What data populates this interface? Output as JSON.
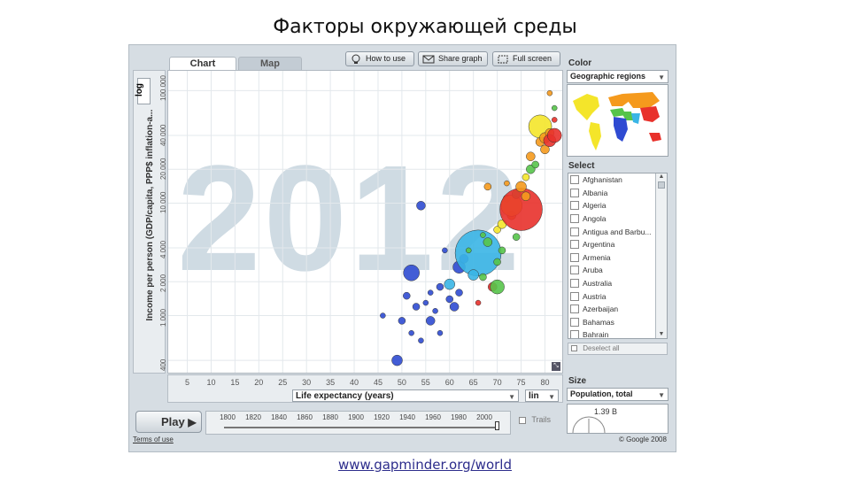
{
  "slide": {
    "title": "Факторы окружающей среды",
    "link": "www.gapminder.org/world"
  },
  "tabs": [
    {
      "label": "Chart"
    },
    {
      "label": "Map"
    }
  ],
  "toolbar": {
    "how_to_use": "How to use",
    "share_graph": "Share graph",
    "full_screen": "Full screen"
  },
  "y_axis": {
    "label": "Income per person (GDP/capita, PPP$ inflation-a...",
    "scale": "log",
    "ticks": [
      "400",
      "1 000",
      "2 000",
      "4 000",
      "10 000",
      "20 000",
      "40 000",
      "100 000"
    ]
  },
  "x_axis": {
    "label": "Life expectancy (years)",
    "scale": "lin",
    "ticks": [
      "5",
      "10",
      "15",
      "20",
      "25",
      "30",
      "35",
      "40",
      "45",
      "50",
      "55",
      "60",
      "65",
      "70",
      "75",
      "80"
    ]
  },
  "year": "2012",
  "color_panel": {
    "title": "Color",
    "value": "Geographic regions",
    "region_colors": {
      "sub_saharan_africa": "#2f4bd2",
      "south_asia": "#3ab5e6",
      "middle_east_north_africa": "#56c44a",
      "america": "#f4e52a",
      "europe_central_asia": "#f59a1d",
      "east_asia_pacific": "#e8312b"
    }
  },
  "select_panel": {
    "title": "Select",
    "items": [
      "Afghanistan",
      "Albania",
      "Algeria",
      "Angola",
      "Antigua and Barbu...",
      "Argentina",
      "Armenia",
      "Aruba",
      "Australia",
      "Austria",
      "Azerbaijan",
      "Bahamas",
      "Bahrain"
    ],
    "deselect_all": "Deselect all"
  },
  "size_panel": {
    "title": "Size",
    "value": "Population, total",
    "gauge_value": "1.39 B"
  },
  "player": {
    "play_label": "Play",
    "years": [
      "1800",
      "1820",
      "1840",
      "1860",
      "1880",
      "1900",
      "1920",
      "1940",
      "1960",
      "1980",
      "2000"
    ],
    "trails_label": "Trails"
  },
  "footer": {
    "terms": "Terms of use",
    "copyright": "© Google 2008"
  },
  "chart_data": {
    "type": "scatter",
    "x_label": "Life expectancy (years)",
    "y_label": "Income per person (GDP/capita, PPP$ inflation-a...",
    "y_scale": "log",
    "x_range": [
      1,
      84
    ],
    "y_range": [
      300,
      150000
    ],
    "points": [
      {
        "x": 46,
        "y": 1000,
        "s": 3,
        "c": "#2f4bd2"
      },
      {
        "x": 49,
        "y": 400,
        "s": 6,
        "c": "#2f4bd2"
      },
      {
        "x": 50,
        "y": 900,
        "s": 4,
        "c": "#2f4bd2"
      },
      {
        "x": 51,
        "y": 1500,
        "s": 4,
        "c": "#2f4bd2"
      },
      {
        "x": 52,
        "y": 2400,
        "s": 9,
        "c": "#2f4bd2"
      },
      {
        "x": 52,
        "y": 700,
        "s": 3,
        "c": "#2f4bd2"
      },
      {
        "x": 53,
        "y": 1200,
        "s": 4,
        "c": "#2f4bd2"
      },
      {
        "x": 54,
        "y": 600,
        "s": 3,
        "c": "#2f4bd2"
      },
      {
        "x": 54,
        "y": 9500,
        "s": 5,
        "c": "#2f4bd2"
      },
      {
        "x": 55,
        "y": 1300,
        "s": 3,
        "c": "#2f4bd2"
      },
      {
        "x": 56,
        "y": 900,
        "s": 5,
        "c": "#2f4bd2"
      },
      {
        "x": 56,
        "y": 1600,
        "s": 3,
        "c": "#2f4bd2"
      },
      {
        "x": 57,
        "y": 1100,
        "s": 3,
        "c": "#2f4bd2"
      },
      {
        "x": 58,
        "y": 1800,
        "s": 4,
        "c": "#2f4bd2"
      },
      {
        "x": 58,
        "y": 700,
        "s": 3,
        "c": "#2f4bd2"
      },
      {
        "x": 59,
        "y": 3800,
        "s": 3,
        "c": "#2f4bd2"
      },
      {
        "x": 60,
        "y": 1400,
        "s": 4,
        "c": "#2f4bd2"
      },
      {
        "x": 60,
        "y": 1900,
        "s": 6,
        "c": "#3ab5e6"
      },
      {
        "x": 61,
        "y": 1200,
        "s": 5,
        "c": "#2f4bd2"
      },
      {
        "x": 62,
        "y": 2700,
        "s": 7,
        "c": "#2f4bd2"
      },
      {
        "x": 62,
        "y": 1600,
        "s": 4,
        "c": "#2f4bd2"
      },
      {
        "x": 63,
        "y": 3200,
        "s": 5,
        "c": "#2f4bd2"
      },
      {
        "x": 66,
        "y": 3600,
        "s": 26,
        "c": "#3ab5e6"
      },
      {
        "x": 66,
        "y": 1300,
        "s": 3,
        "c": "#e8312b"
      },
      {
        "x": 67,
        "y": 2200,
        "s": 4,
        "c": "#56c44a"
      },
      {
        "x": 65,
        "y": 2300,
        "s": 6,
        "c": "#3ab5e6"
      },
      {
        "x": 68,
        "y": 4500,
        "s": 5,
        "c": "#56c44a"
      },
      {
        "x": 69,
        "y": 1800,
        "s": 5,
        "c": "#e8312b"
      },
      {
        "x": 70,
        "y": 1800,
        "s": 8,
        "c": "#56c44a"
      },
      {
        "x": 70,
        "y": 3000,
        "s": 4,
        "c": "#56c44a"
      },
      {
        "x": 70,
        "y": 5800,
        "s": 4,
        "c": "#f4e52a"
      },
      {
        "x": 71,
        "y": 6500,
        "s": 5,
        "c": "#f4e52a"
      },
      {
        "x": 72,
        "y": 11000,
        "s": 4,
        "c": "#f59a1d"
      },
      {
        "x": 73,
        "y": 7800,
        "s": 5,
        "c": "#f59a1d"
      },
      {
        "x": 73,
        "y": 9500,
        "s": 12,
        "c": "#f4e52a"
      },
      {
        "x": 74,
        "y": 5000,
        "s": 4,
        "c": "#56c44a"
      },
      {
        "x": 74,
        "y": 12000,
        "s": 5,
        "c": "#56c44a"
      },
      {
        "x": 75,
        "y": 8800,
        "s": 24,
        "c": "#e8312b"
      },
      {
        "x": 75,
        "y": 14000,
        "s": 6,
        "c": "#f59a1d"
      },
      {
        "x": 76,
        "y": 11500,
        "s": 5,
        "c": "#f59a1d"
      },
      {
        "x": 76,
        "y": 17000,
        "s": 4,
        "c": "#f4e52a"
      },
      {
        "x": 77,
        "y": 20000,
        "s": 5,
        "c": "#56c44a"
      },
      {
        "x": 77,
        "y": 26000,
        "s": 5,
        "c": "#f59a1d"
      },
      {
        "x": 78,
        "y": 22000,
        "s": 4,
        "c": "#56c44a"
      },
      {
        "x": 79,
        "y": 35000,
        "s": 5,
        "c": "#f59a1d"
      },
      {
        "x": 79,
        "y": 48000,
        "s": 13,
        "c": "#f4e52a"
      },
      {
        "x": 80,
        "y": 38000,
        "s": 6,
        "c": "#f59a1d"
      },
      {
        "x": 80,
        "y": 30000,
        "s": 5,
        "c": "#f59a1d"
      },
      {
        "x": 81,
        "y": 42000,
        "s": 5,
        "c": "#f59a1d"
      },
      {
        "x": 81,
        "y": 36000,
        "s": 7,
        "c": "#e8312b"
      },
      {
        "x": 82,
        "y": 40000,
        "s": 8,
        "c": "#e8312b"
      },
      {
        "x": 82,
        "y": 55000,
        "s": 3,
        "c": "#e8312b"
      },
      {
        "x": 81,
        "y": 95000,
        "s": 3,
        "c": "#f59a1d"
      },
      {
        "x": 82,
        "y": 70000,
        "s": 3,
        "c": "#56c44a"
      },
      {
        "x": 64,
        "y": 3800,
        "s": 3,
        "c": "#56c44a"
      },
      {
        "x": 67,
        "y": 5200,
        "s": 3,
        "c": "#56c44a"
      },
      {
        "x": 72,
        "y": 15000,
        "s": 3,
        "c": "#f59a1d"
      },
      {
        "x": 68,
        "y": 14000,
        "s": 4,
        "c": "#f59a1d"
      },
      {
        "x": 71,
        "y": 3800,
        "s": 4,
        "c": "#56c44a"
      }
    ]
  }
}
